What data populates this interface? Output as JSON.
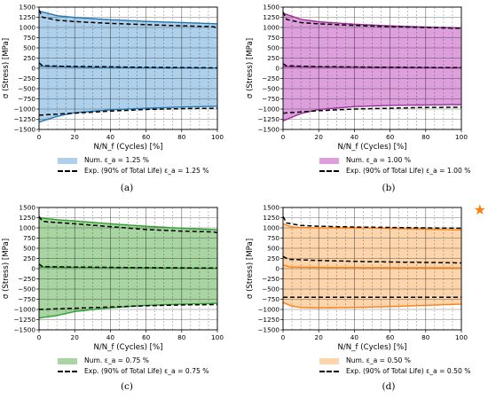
{
  "chart_data": [
    {
      "type": "area",
      "id": "a",
      "caption": "(a)",
      "xlabel": "N/N_f (Cycles) [%]",
      "ylabel": "σ (Stress) [MPa]",
      "xlim": [
        0,
        100
      ],
      "ylim": [
        -1500,
        1500
      ],
      "x_ticks": [
        "0",
        "20",
        "40",
        "60",
        "80",
        "100"
      ],
      "y_ticks": [
        "1500",
        "1250",
        "1000",
        "750",
        "500",
        "250",
        "0",
        "−250",
        "−500",
        "−750",
        "−1000",
        "−1250",
        "−1500"
      ],
      "grid": true,
      "color": "#1f77b4",
      "fill": "#aed0ea",
      "numerical_max": [
        [
          0,
          1400
        ],
        [
          10,
          1290
        ],
        [
          20,
          1245
        ],
        [
          40,
          1190
        ],
        [
          60,
          1150
        ],
        [
          80,
          1120
        ],
        [
          100,
          1090
        ]
      ],
      "numerical_mean": [
        [
          0,
          50
        ],
        [
          20,
          30
        ],
        [
          50,
          15
        ],
        [
          100,
          5
        ]
      ],
      "numerical_min": [
        [
          0,
          -1320
        ],
        [
          10,
          -1180
        ],
        [
          20,
          -1090
        ],
        [
          40,
          -1020
        ],
        [
          60,
          -980
        ],
        [
          80,
          -950
        ],
        [
          100,
          -930
        ]
      ],
      "experimental_max": [
        [
          0,
          1430
        ],
        [
          2,
          1250
        ],
        [
          10,
          1180
        ],
        [
          20,
          1145
        ],
        [
          40,
          1100
        ],
        [
          60,
          1070
        ],
        [
          80,
          1040
        ],
        [
          98,
          1020
        ],
        [
          100,
          970
        ]
      ],
      "experimental_mean": [
        [
          0,
          130
        ],
        [
          2,
          60
        ],
        [
          20,
          45
        ],
        [
          60,
          25
        ],
        [
          100,
          10
        ]
      ],
      "experimental_min": [
        [
          0,
          -1150
        ],
        [
          20,
          -1100
        ],
        [
          40,
          -1050
        ],
        [
          60,
          -1010
        ],
        [
          80,
          -990
        ],
        [
          100,
          -980
        ]
      ],
      "legend": [
        "Num. ε_a = 1.25 %",
        "Exp. (90% of Total Life) ε_a = 1.25 %"
      ]
    },
    {
      "type": "area",
      "id": "b",
      "caption": "(b)",
      "xlabel": "N/N_f (Cycles) [%]",
      "ylabel": "σ (Stress) [MPa]",
      "xlim": [
        0,
        100
      ],
      "ylim": [
        -1500,
        1500
      ],
      "x_ticks": [
        "0",
        "20",
        "40",
        "60",
        "80",
        "100"
      ],
      "y_ticks": [
        "1500",
        "1250",
        "1000",
        "750",
        "500",
        "250",
        "0",
        "−250",
        "−500",
        "−750",
        "−1000",
        "−1250",
        "−1500"
      ],
      "grid": true,
      "color": "#9b2d9b",
      "fill": "#dda0dd",
      "numerical_max": [
        [
          0,
          1350
        ],
        [
          10,
          1200
        ],
        [
          20,
          1140
        ],
        [
          40,
          1080
        ],
        [
          60,
          1040
        ],
        [
          80,
          1010
        ],
        [
          100,
          990
        ]
      ],
      "numerical_mean": [
        [
          0,
          40
        ],
        [
          20,
          30
        ],
        [
          60,
          20
        ],
        [
          100,
          10
        ]
      ],
      "numerical_min": [
        [
          0,
          -1290
        ],
        [
          10,
          -1110
        ],
        [
          20,
          -1010
        ],
        [
          40,
          -940
        ],
        [
          60,
          -910
        ],
        [
          80,
          -900
        ],
        [
          100,
          -890
        ]
      ],
      "experimental_max": [
        [
          0,
          1380
        ],
        [
          2,
          1200
        ],
        [
          10,
          1120
        ],
        [
          20,
          1090
        ],
        [
          40,
          1050
        ],
        [
          60,
          1020
        ],
        [
          80,
          1000
        ],
        [
          100,
          980
        ]
      ],
      "experimental_mean": [
        [
          0,
          110
        ],
        [
          2,
          60
        ],
        [
          20,
          40
        ],
        [
          60,
          25
        ],
        [
          100,
          15
        ]
      ],
      "experimental_min": [
        [
          0,
          -1100
        ],
        [
          20,
          -1040
        ],
        [
          40,
          -1000
        ],
        [
          60,
          -980
        ],
        [
          80,
          -960
        ],
        [
          100,
          -955
        ]
      ],
      "legend": [
        "Num. ε_a = 1.00 %",
        "Exp. (90% of Total Life) ε_a = 1.00 %"
      ]
    },
    {
      "type": "area",
      "id": "c",
      "caption": "(c)",
      "xlabel": "N/N_f (Cycles) [%]",
      "ylabel": "σ (Stress) [MPa]",
      "xlim": [
        0,
        100
      ],
      "ylim": [
        -1500,
        1500
      ],
      "x_ticks": [
        "0",
        "20",
        "40",
        "60",
        "80",
        "100"
      ],
      "y_ticks": [
        "1500",
        "1250",
        "1000",
        "750",
        "500",
        "250",
        "0",
        "−250",
        "−500",
        "−750",
        "−1000",
        "−1250",
        "−1500"
      ],
      "grid": true,
      "color": "#2ca02c",
      "fill": "#a8d5a2",
      "numerical_max": [
        [
          0,
          1250
        ],
        [
          10,
          1200
        ],
        [
          20,
          1170
        ],
        [
          40,
          1100
        ],
        [
          60,
          1040
        ],
        [
          80,
          990
        ],
        [
          98,
          960
        ],
        [
          100,
          950
        ]
      ],
      "numerical_mean": [
        [
          0,
          40
        ],
        [
          20,
          30
        ],
        [
          60,
          20
        ],
        [
          100,
          10
        ]
      ],
      "numerical_min": [
        [
          0,
          -1210
        ],
        [
          10,
          -1150
        ],
        [
          20,
          -1050
        ],
        [
          40,
          -960
        ],
        [
          60,
          -900
        ],
        [
          80,
          -870
        ],
        [
          100,
          -850
        ]
      ],
      "experimental_max": [
        [
          0,
          1280
        ],
        [
          2,
          1160
        ],
        [
          10,
          1130
        ],
        [
          20,
          1100
        ],
        [
          40,
          1030
        ],
        [
          60,
          960
        ],
        [
          80,
          920
        ],
        [
          98,
          900
        ],
        [
          100,
          880
        ]
      ],
      "experimental_mean": [
        [
          0,
          110
        ],
        [
          2,
          50
        ],
        [
          20,
          40
        ],
        [
          60,
          25
        ],
        [
          100,
          15
        ]
      ],
      "experimental_min": [
        [
          0,
          -1000
        ],
        [
          20,
          -970
        ],
        [
          40,
          -940
        ],
        [
          60,
          -910
        ],
        [
          80,
          -890
        ],
        [
          100,
          -880
        ]
      ],
      "legend": [
        "Num. ε_a = 0.75 %",
        "Exp. (90% of Total Life) ε_a = 0.75 %"
      ]
    },
    {
      "type": "area",
      "id": "d",
      "caption": "(d)",
      "xlabel": "N/N_f (Cycles) [%]",
      "ylabel": "σ (Stress) [MPa]",
      "xlim": [
        0,
        100
      ],
      "ylim": [
        -1500,
        1500
      ],
      "x_ticks": [
        "0",
        "20",
        "40",
        "60",
        "80",
        "100"
      ],
      "y_ticks": [
        "1500",
        "1250",
        "1000",
        "750",
        "500",
        "250",
        "0",
        "−250",
        "−500",
        "−750",
        "−1000",
        "−1250",
        "−1500"
      ],
      "grid": true,
      "color": "#ff7f0e",
      "fill": "#fdd5ac",
      "numerical_max": [
        [
          0,
          1100
        ],
        [
          5,
          1020
        ],
        [
          20,
          1000
        ],
        [
          40,
          1000
        ],
        [
          60,
          990
        ],
        [
          80,
          970
        ],
        [
          100,
          950
        ]
      ],
      "numerical_mean": [
        [
          0,
          90
        ],
        [
          4,
          40
        ],
        [
          20,
          30
        ],
        [
          60,
          25
        ],
        [
          100,
          20
        ]
      ],
      "numerical_min": [
        [
          0,
          -830
        ],
        [
          5,
          -920
        ],
        [
          10,
          -950
        ],
        [
          20,
          -960
        ],
        [
          40,
          -950
        ],
        [
          60,
          -930
        ],
        [
          80,
          -900
        ],
        [
          100,
          -870
        ]
      ],
      "experimental_max": [
        [
          0,
          1280
        ],
        [
          2,
          1120
        ],
        [
          10,
          1060
        ],
        [
          20,
          1040
        ],
        [
          40,
          1020
        ],
        [
          60,
          1010
        ],
        [
          80,
          1000
        ],
        [
          100,
          990
        ]
      ],
      "experimental_mean": [
        [
          0,
          300
        ],
        [
          3,
          230
        ],
        [
          20,
          200
        ],
        [
          50,
          170
        ],
        [
          100,
          140
        ]
      ],
      "experimental_min": [
        [
          0,
          -700
        ],
        [
          20,
          -700
        ],
        [
          60,
          -700
        ],
        [
          100,
          -700
        ]
      ],
      "legend": [
        "Num. ε_a = 0.50 %",
        "Exp. (90% of Total Life) ε_a = 0.50 %"
      ]
    }
  ],
  "star": "★"
}
